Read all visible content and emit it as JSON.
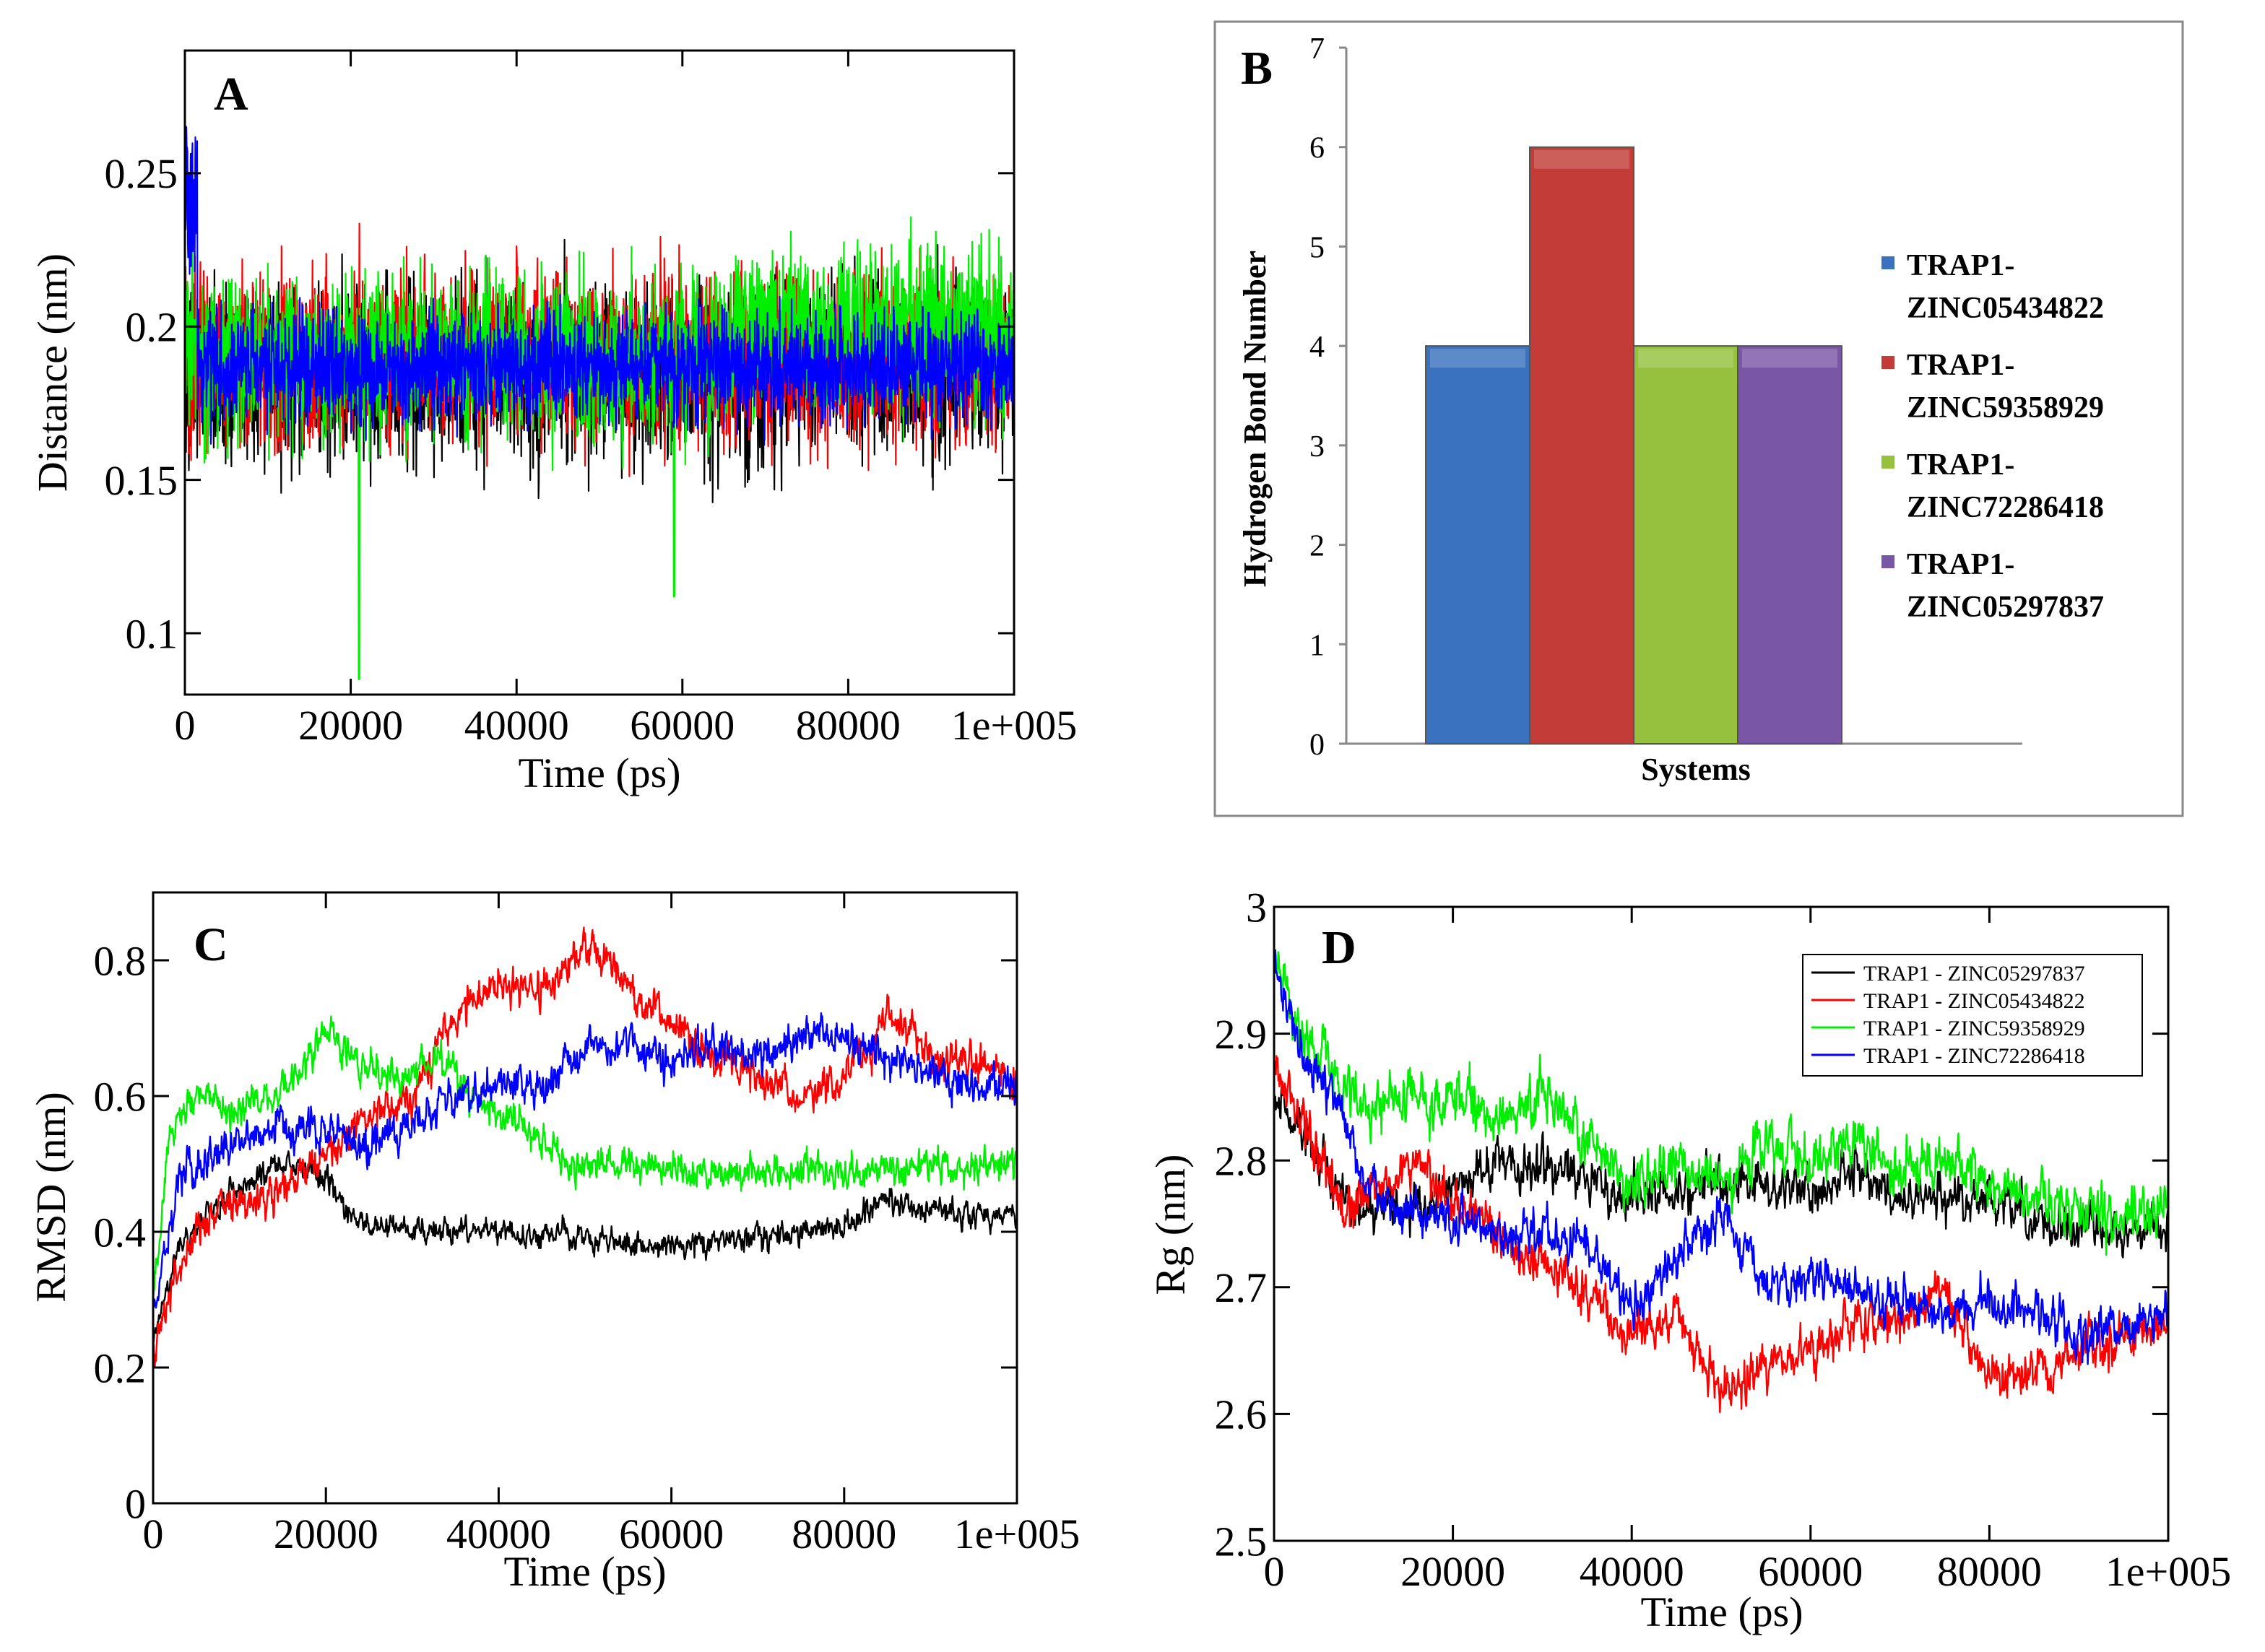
{
  "chart_data": [
    {
      "panel": "A",
      "type": "line",
      "title": "",
      "xlabel": "Time (ps)",
      "ylabel": "Distance (nm)",
      "xlim": [
        0,
        100000
      ],
      "ylim": [
        0.08,
        0.29
      ],
      "xticks": [
        "0",
        "20000",
        "40000",
        "60000",
        "80000",
        "1e+005"
      ],
      "yticks": [
        "0.1",
        "0.15",
        "0.2",
        "0.25"
      ],
      "grid": false,
      "series": [
        {
          "name": "black",
          "color": "#000000",
          "mean": 0.185,
          "noise": 0.026,
          "x_end": 100000
        },
        {
          "name": "red",
          "color": "#ff0000",
          "mean": 0.19,
          "noise": 0.024,
          "x_end": 100000
        },
        {
          "name": "green",
          "color": "#00ee00",
          "mean": 0.19,
          "noise": 0.024,
          "late_mean": 0.2,
          "late_start": 66000,
          "x_end": 100000,
          "dips": [
            [
              21000,
              0.085
            ],
            [
              59000,
              0.112
            ]
          ]
        },
        {
          "name": "blue",
          "color": "#0000ff",
          "mean": 0.187,
          "noise": 0.016,
          "x_end": 100000
        }
      ]
    },
    {
      "panel": "B",
      "type": "bar",
      "title": "",
      "xlabel": "Systems",
      "ylabel": "Hydrogen Bond Number",
      "ylim": [
        0,
        7
      ],
      "yticks": [
        "0",
        "1",
        "2",
        "3",
        "4",
        "5",
        "6",
        "7"
      ],
      "legend_position": "right",
      "series": [
        {
          "name": "TRAP1-ZINC05434822",
          "label_lines": [
            "TRAP1-",
            "ZINC05434822"
          ],
          "value": 4,
          "color": "#3a72bf"
        },
        {
          "name": "TRAP1-ZINC59358929",
          "label_lines": [
            "TRAP1-",
            "ZINC59358929"
          ],
          "value": 6,
          "color": "#c33c37"
        },
        {
          "name": "TRAP1-ZINC72286418",
          "label_lines": [
            "TRAP1-",
            "ZINC72286418"
          ],
          "value": 4,
          "color": "#95c13e"
        },
        {
          "name": "TRAP1-ZINC05297837",
          "label_lines": [
            "TRAP1-",
            "ZINC05297837"
          ],
          "value": 4,
          "color": "#7a57a6"
        }
      ]
    },
    {
      "panel": "C",
      "type": "line",
      "title": "",
      "xlabel": "Time (ps)",
      "ylabel": "RMSD (nm)",
      "xlim": [
        0,
        100000
      ],
      "ylim": [
        0,
        0.9
      ],
      "xticks": [
        "0",
        "20000",
        "40000",
        "60000",
        "80000",
        "1e+005"
      ],
      "yticks": [
        "0",
        "0.2",
        "0.4",
        "0.6",
        "0.8"
      ],
      "grid": false,
      "series": [
        {
          "name": "black",
          "color": "#000000",
          "noise": 0.014,
          "x_end": 100000,
          "points": [
            [
              0,
              0.24
            ],
            [
              3000,
              0.38
            ],
            [
              8000,
              0.45
            ],
            [
              15000,
              0.5
            ],
            [
              20000,
              0.48
            ],
            [
              23000,
              0.42
            ],
            [
              30000,
              0.4
            ],
            [
              40000,
              0.4
            ],
            [
              50000,
              0.39
            ],
            [
              60000,
              0.38
            ],
            [
              70000,
              0.39
            ],
            [
              80000,
              0.41
            ],
            [
              85000,
              0.45
            ],
            [
              90000,
              0.43
            ],
            [
              100000,
              0.42
            ]
          ]
        },
        {
          "name": "red",
          "color": "#ff0000",
          "noise": 0.022,
          "x_end": 100000,
          "points": [
            [
              0,
              0.22
            ],
            [
              3000,
              0.36
            ],
            [
              8000,
              0.44
            ],
            [
              14000,
              0.45
            ],
            [
              20000,
              0.52
            ],
            [
              25000,
              0.57
            ],
            [
              30000,
              0.6
            ],
            [
              35000,
              0.72
            ],
            [
              40000,
              0.77
            ],
            [
              45000,
              0.75
            ],
            [
              50000,
              0.82
            ],
            [
              55000,
              0.76
            ],
            [
              60000,
              0.7
            ],
            [
              65000,
              0.66
            ],
            [
              70000,
              0.63
            ],
            [
              75000,
              0.6
            ],
            [
              80000,
              0.62
            ],
            [
              85000,
              0.72
            ],
            [
              90000,
              0.66
            ],
            [
              95000,
              0.65
            ],
            [
              100000,
              0.62
            ]
          ]
        },
        {
          "name": "green",
          "color": "#00ee00",
          "noise": 0.02,
          "x_end": 100000,
          "points": [
            [
              0,
              0.3
            ],
            [
              2000,
              0.55
            ],
            [
              5000,
              0.6
            ],
            [
              10000,
              0.58
            ],
            [
              15000,
              0.6
            ],
            [
              20000,
              0.7
            ],
            [
              23000,
              0.65
            ],
            [
              28000,
              0.62
            ],
            [
              33000,
              0.66
            ],
            [
              37000,
              0.6
            ],
            [
              43000,
              0.55
            ],
            [
              47000,
              0.5
            ],
            [
              55000,
              0.5
            ],
            [
              65000,
              0.48
            ],
            [
              75000,
              0.49
            ],
            [
              85000,
              0.49
            ],
            [
              95000,
              0.5
            ],
            [
              100000,
              0.5
            ]
          ]
        },
        {
          "name": "blue",
          "color": "#0000ff",
          "noise": 0.022,
          "x_end": 100000,
          "points": [
            [
              0,
              0.28
            ],
            [
              3000,
              0.48
            ],
            [
              8000,
              0.52
            ],
            [
              15000,
              0.56
            ],
            [
              20000,
              0.55
            ],
            [
              25000,
              0.53
            ],
            [
              30000,
              0.56
            ],
            [
              35000,
              0.6
            ],
            [
              40000,
              0.62
            ],
            [
              45000,
              0.61
            ],
            [
              50000,
              0.67
            ],
            [
              55000,
              0.68
            ],
            [
              60000,
              0.65
            ],
            [
              65000,
              0.67
            ],
            [
              70000,
              0.66
            ],
            [
              75000,
              0.69
            ],
            [
              80000,
              0.68
            ],
            [
              85000,
              0.66
            ],
            [
              90000,
              0.63
            ],
            [
              95000,
              0.61
            ],
            [
              100000,
              0.63
            ]
          ]
        }
      ]
    },
    {
      "panel": "D",
      "type": "line",
      "title": "",
      "xlabel": "Time (ps)",
      "ylabel": "Rg (nm)",
      "xlim": [
        0,
        100000
      ],
      "ylim": [
        2.5,
        3.0
      ],
      "xticks": [
        "0",
        "20000",
        "40000",
        "60000",
        "80000",
        "1e+005"
      ],
      "yticks": [
        "2.5",
        "2.6",
        "2.7",
        "2.8",
        "2.9",
        "3"
      ],
      "grid": false,
      "legend_position": "top-right",
      "series": [
        {
          "name": "TRAP1 - ZINC05297837",
          "color": "#000000",
          "noise": 0.014,
          "x_end": 100000,
          "points": [
            [
              0,
              2.85
            ],
            [
              5000,
              2.8
            ],
            [
              10000,
              2.76
            ],
            [
              15000,
              2.76
            ],
            [
              20000,
              2.78
            ],
            [
              25000,
              2.8
            ],
            [
              30000,
              2.79
            ],
            [
              35000,
              2.79
            ],
            [
              40000,
              2.77
            ],
            [
              50000,
              2.78
            ],
            [
              60000,
              2.78
            ],
            [
              65000,
              2.79
            ],
            [
              70000,
              2.77
            ],
            [
              80000,
              2.77
            ],
            [
              85000,
              2.75
            ],
            [
              90000,
              2.75
            ],
            [
              95000,
              2.74
            ],
            [
              100000,
              2.75
            ]
          ]
        },
        {
          "name": "TRAP1 - ZINC05434822",
          "color": "#ff0000",
          "noise": 0.014,
          "x_end": 100000,
          "points": [
            [
              0,
              2.88
            ],
            [
              5000,
              2.8
            ],
            [
              8000,
              2.76
            ],
            [
              12000,
              2.78
            ],
            [
              15000,
              2.8
            ],
            [
              20000,
              2.77
            ],
            [
              25000,
              2.74
            ],
            [
              30000,
              2.72
            ],
            [
              35000,
              2.7
            ],
            [
              40000,
              2.66
            ],
            [
              45000,
              2.68
            ],
            [
              50000,
              2.62
            ],
            [
              55000,
              2.64
            ],
            [
              60000,
              2.65
            ],
            [
              65000,
              2.67
            ],
            [
              70000,
              2.67
            ],
            [
              75000,
              2.7
            ],
            [
              80000,
              2.63
            ],
            [
              85000,
              2.63
            ],
            [
              90000,
              2.65
            ],
            [
              95000,
              2.66
            ],
            [
              100000,
              2.67
            ]
          ]
        },
        {
          "name": "TRAP1 - ZINC59358929",
          "color": "#00ee00",
          "noise": 0.016,
          "x_end": 100000,
          "points": [
            [
              0,
              2.95
            ],
            [
              3000,
              2.9
            ],
            [
              5000,
              2.88
            ],
            [
              10000,
              2.84
            ],
            [
              15000,
              2.85
            ],
            [
              20000,
              2.85
            ],
            [
              25000,
              2.83
            ],
            [
              30000,
              2.85
            ],
            [
              35000,
              2.82
            ],
            [
              40000,
              2.78
            ],
            [
              45000,
              2.8
            ],
            [
              50000,
              2.78
            ],
            [
              55000,
              2.81
            ],
            [
              60000,
              2.8
            ],
            [
              65000,
              2.82
            ],
            [
              70000,
              2.79
            ],
            [
              75000,
              2.8
            ],
            [
              80000,
              2.78
            ],
            [
              85000,
              2.77
            ],
            [
              90000,
              2.76
            ],
            [
              95000,
              2.75
            ],
            [
              100000,
              2.77
            ]
          ]
        },
        {
          "name": "TRAP1 - ZINC72286418",
          "color": "#0000ff",
          "noise": 0.014,
          "x_end": 100000,
          "points": [
            [
              0,
              2.95
            ],
            [
              3000,
              2.88
            ],
            [
              7000,
              2.85
            ],
            [
              10000,
              2.78
            ],
            [
              15000,
              2.76
            ],
            [
              20000,
              2.75
            ],
            [
              25000,
              2.74
            ],
            [
              30000,
              2.75
            ],
            [
              35000,
              2.73
            ],
            [
              40000,
              2.68
            ],
            [
              45000,
              2.72
            ],
            [
              50000,
              2.76
            ],
            [
              55000,
              2.7
            ],
            [
              60000,
              2.71
            ],
            [
              65000,
              2.7
            ],
            [
              70000,
              2.69
            ],
            [
              75000,
              2.68
            ],
            [
              80000,
              2.69
            ],
            [
              85000,
              2.68
            ],
            [
              90000,
              2.66
            ],
            [
              95000,
              2.67
            ],
            [
              100000,
              2.68
            ]
          ]
        }
      ]
    }
  ],
  "panel_labels": {
    "a": "A",
    "b": "B",
    "c": "C",
    "d": "D"
  }
}
